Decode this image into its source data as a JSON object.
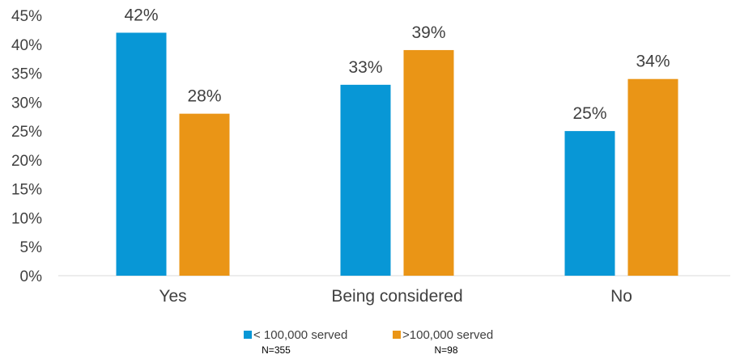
{
  "chart_data": {
    "type": "bar",
    "categories": [
      "Yes",
      "Being considered",
      "No"
    ],
    "series": [
      {
        "name": "< 100,000 served",
        "note": "N=355",
        "color": "#0897D6",
        "values": [
          42,
          33,
          25
        ]
      },
      {
        "name": ">100,000 served",
        "note": "N=98",
        "color": "#EA9516",
        "values": [
          28,
          39,
          34
        ]
      }
    ],
    "data_labels": [
      [
        "42%",
        "33%",
        "25%"
      ],
      [
        "28%",
        "39%",
        "34%"
      ]
    ],
    "y_ticks": [
      "0%",
      "5%",
      "10%",
      "15%",
      "20%",
      "25%",
      "30%",
      "35%",
      "40%",
      "45%"
    ],
    "ylim": [
      0,
      45
    ],
    "grid": false,
    "legend_position": "bottom-center"
  }
}
